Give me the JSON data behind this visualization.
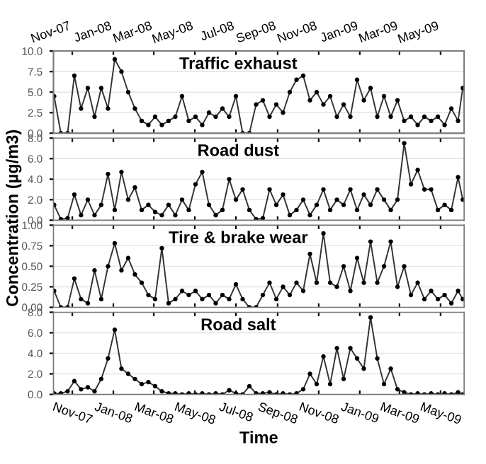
{
  "chart_data": [
    {
      "type": "line",
      "title": "Traffic exhaust",
      "marker": "circle",
      "line_style": "solid",
      "grid": "y",
      "tick_labels": "y",
      "xlim": [
        "2007-10-04",
        "2009-06-05"
      ],
      "xticks": [
        {
          "value": "2007-11-01",
          "label": null
        },
        {
          "value": "2008-01-01",
          "label": null
        },
        {
          "value": "2008-03-01",
          "label": null
        },
        {
          "value": "2008-05-01",
          "label": null
        },
        {
          "value": "2008-07-01",
          "label": null
        },
        {
          "value": "2008-09-01",
          "label": null
        },
        {
          "value": "2008-11-01",
          "label": null
        },
        {
          "value": "2009-01-01",
          "label": null
        },
        {
          "value": "2009-03-01",
          "label": null
        },
        {
          "value": "2009-05-01",
          "label": null
        }
      ],
      "x2lim": [
        "2007-10-04",
        "2009-06-05"
      ],
      "x2ticks": [
        {
          "value": "2007-11-01",
          "label": "Nov-07"
        },
        {
          "value": "2008-01-01",
          "label": "Jan-08"
        },
        {
          "value": "2008-03-01",
          "label": "Mar-08"
        },
        {
          "value": "2008-05-01",
          "label": "May-08"
        },
        {
          "value": "2008-07-01",
          "label": "Jul-08"
        },
        {
          "value": "2008-09-01",
          "label": "Sep-08"
        },
        {
          "value": "2008-11-01",
          "label": "Nov-08"
        },
        {
          "value": "2009-01-01",
          "label": "Jan-09"
        },
        {
          "value": "2009-03-01",
          "label": "Mar-09"
        },
        {
          "value": "2009-05-01",
          "label": "May-09"
        }
      ],
      "ylim": [
        0,
        10
      ],
      "yticks": [
        {
          "value": 0,
          "label": "0.0"
        },
        {
          "value": 2.5,
          "label": "2.5"
        },
        {
          "value": 5,
          "label": "5.0"
        },
        {
          "value": 7.5,
          "label": "7.5"
        },
        {
          "value": 10,
          "label": "10.0"
        }
      ],
      "x": [
        "2007-10-05",
        "2007-10-15",
        "2007-10-25",
        "2007-11-04",
        "2007-11-14",
        "2007-11-24",
        "2007-12-04",
        "2007-12-14",
        "2007-12-24",
        "2008-01-03",
        "2008-01-13",
        "2008-01-23",
        "2008-02-02",
        "2008-02-12",
        "2008-02-22",
        "2008-03-03",
        "2008-03-13",
        "2008-03-23",
        "2008-04-02",
        "2008-04-12",
        "2008-04-22",
        "2008-05-02",
        "2008-05-12",
        "2008-05-22",
        "2008-06-01",
        "2008-06-11",
        "2008-06-21",
        "2008-07-01",
        "2008-07-11",
        "2008-07-21",
        "2008-07-31",
        "2008-08-10",
        "2008-08-20",
        "2008-08-30",
        "2008-09-09",
        "2008-09-19",
        "2008-09-29",
        "2008-10-09",
        "2008-10-19",
        "2008-10-29",
        "2008-11-08",
        "2008-11-18",
        "2008-11-28",
        "2008-12-08",
        "2008-12-18",
        "2008-12-28",
        "2009-01-07",
        "2009-01-17",
        "2009-01-27",
        "2009-02-06",
        "2009-02-16",
        "2009-02-26",
        "2009-03-08",
        "2009-03-18",
        "2009-03-28",
        "2009-04-07",
        "2009-04-17",
        "2009-04-27",
        "2009-05-07",
        "2009-05-17",
        "2009-05-27",
        "2009-06-03"
      ],
      "series": [
        {
          "color": "#333333",
          "values": [
            4.5,
            0,
            0,
            7,
            3,
            5.5,
            2,
            5.5,
            3,
            9,
            7.5,
            5,
            3,
            1.5,
            1,
            2,
            1,
            1.5,
            2,
            4.5,
            1.5,
            2,
            1,
            2.5,
            2,
            3,
            2,
            4.5,
            0,
            0,
            3.5,
            4,
            2,
            3.5,
            2.5,
            5,
            6.5,
            7,
            4,
            5,
            3.5,
            4.5,
            2,
            3.5,
            2,
            6.5,
            4,
            5.5,
            2,
            4.5,
            2,
            4,
            1.5,
            2,
            1,
            2,
            1.5,
            2,
            1,
            3,
            1.5,
            5.5
          ]
        }
      ]
    },
    {
      "type": "line",
      "title": "Road dust",
      "ylabel": "Concentration (µg/m3)",
      "marker": "circle",
      "line_style": "solid",
      "grid": "y",
      "tick_labels": "y",
      "xlim": [
        "2007-10-04",
        "2009-06-05"
      ],
      "xticks": [
        {
          "value": "2007-11-01",
          "label": null
        },
        {
          "value": "2008-01-01",
          "label": null
        },
        {
          "value": "2008-03-01",
          "label": null
        },
        {
          "value": "2008-05-01",
          "label": null
        },
        {
          "value": "2008-07-01",
          "label": null
        },
        {
          "value": "2008-09-01",
          "label": null
        },
        {
          "value": "2008-11-01",
          "label": null
        },
        {
          "value": "2009-01-01",
          "label": null
        },
        {
          "value": "2009-03-01",
          "label": null
        },
        {
          "value": "2009-05-01",
          "label": null
        }
      ],
      "ylim": [
        0,
        8
      ],
      "yticks": [
        {
          "value": 0,
          "label": "0.0"
        },
        {
          "value": 2,
          "label": "2.0"
        },
        {
          "value": 4,
          "label": "4.0"
        },
        {
          "value": 6,
          "label": "6.0"
        },
        {
          "value": 8,
          "label": "8.0"
        }
      ],
      "x": [
        "2007-10-05",
        "2007-10-15",
        "2007-10-25",
        "2007-11-04",
        "2007-11-14",
        "2007-11-24",
        "2007-12-04",
        "2007-12-14",
        "2007-12-24",
        "2008-01-03",
        "2008-01-13",
        "2008-01-23",
        "2008-02-02",
        "2008-02-12",
        "2008-02-22",
        "2008-03-03",
        "2008-03-13",
        "2008-03-23",
        "2008-04-02",
        "2008-04-12",
        "2008-04-22",
        "2008-05-02",
        "2008-05-12",
        "2008-05-22",
        "2008-06-01",
        "2008-06-11",
        "2008-06-21",
        "2008-07-01",
        "2008-07-11",
        "2008-07-21",
        "2008-07-31",
        "2008-08-10",
        "2008-08-20",
        "2008-08-30",
        "2008-09-09",
        "2008-09-19",
        "2008-09-29",
        "2008-10-09",
        "2008-10-19",
        "2008-10-29",
        "2008-11-08",
        "2008-11-18",
        "2008-11-28",
        "2008-12-08",
        "2008-12-18",
        "2008-12-28",
        "2009-01-07",
        "2009-01-17",
        "2009-01-27",
        "2009-02-06",
        "2009-02-16",
        "2009-02-26",
        "2009-03-08",
        "2009-03-18",
        "2009-03-28",
        "2009-04-07",
        "2009-04-17",
        "2009-04-27",
        "2009-05-07",
        "2009-05-17",
        "2009-05-27",
        "2009-06-03"
      ],
      "series": [
        {
          "color": "#333333",
          "values": [
            1.5,
            0.1,
            0.2,
            2.5,
            0.5,
            2,
            0.5,
            1.5,
            4.5,
            1,
            4.7,
            2,
            3.2,
            1,
            1.5,
            0.8,
            0.5,
            1.5,
            0.5,
            2,
            1,
            3.5,
            4.7,
            1.5,
            0.5,
            1,
            4,
            2,
            3,
            1,
            0.1,
            0.2,
            3,
            1.5,
            2.5,
            0.5,
            1,
            2,
            0.5,
            1.5,
            3,
            1,
            2,
            1.5,
            3,
            1,
            2.5,
            1.5,
            3,
            2,
            1,
            2,
            7.5,
            3.5,
            4.9,
            3,
            3,
            1,
            1.5,
            1,
            4.2,
            2
          ]
        }
      ]
    },
    {
      "type": "line",
      "title": "Tire & brake wear",
      "marker": "circle",
      "line_style": "solid",
      "grid": "y",
      "tick_labels": "y",
      "xlim": [
        "2007-10-04",
        "2009-06-05"
      ],
      "xticks": [
        {
          "value": "2007-11-01",
          "label": null
        },
        {
          "value": "2008-01-01",
          "label": null
        },
        {
          "value": "2008-03-01",
          "label": null
        },
        {
          "value": "2008-05-01",
          "label": null
        },
        {
          "value": "2008-07-01",
          "label": null
        },
        {
          "value": "2008-09-01",
          "label": null
        },
        {
          "value": "2008-11-01",
          "label": null
        },
        {
          "value": "2009-01-01",
          "label": null
        },
        {
          "value": "2009-03-01",
          "label": null
        },
        {
          "value": "2009-05-01",
          "label": null
        }
      ],
      "ylim": [
        0,
        1
      ],
      "yticks": [
        {
          "value": 0,
          "label": "0.00"
        },
        {
          "value": 0.25,
          "label": "0.25"
        },
        {
          "value": 0.5,
          "label": "0.50"
        },
        {
          "value": 0.75,
          "label": "0.75"
        },
        {
          "value": 1,
          "label": "1.00"
        }
      ],
      "x": [
        "2007-10-05",
        "2007-10-15",
        "2007-10-25",
        "2007-11-04",
        "2007-11-14",
        "2007-11-24",
        "2007-12-04",
        "2007-12-14",
        "2007-12-24",
        "2008-01-03",
        "2008-01-13",
        "2008-01-23",
        "2008-02-02",
        "2008-02-12",
        "2008-02-22",
        "2008-03-03",
        "2008-03-13",
        "2008-03-23",
        "2008-04-02",
        "2008-04-12",
        "2008-04-22",
        "2008-05-02",
        "2008-05-12",
        "2008-05-22",
        "2008-06-01",
        "2008-06-11",
        "2008-06-21",
        "2008-07-01",
        "2008-07-11",
        "2008-07-21",
        "2008-07-31",
        "2008-08-10",
        "2008-08-20",
        "2008-08-30",
        "2008-09-09",
        "2008-09-19",
        "2008-09-29",
        "2008-10-09",
        "2008-10-19",
        "2008-10-29",
        "2008-11-08",
        "2008-11-18",
        "2008-11-28",
        "2008-12-08",
        "2008-12-18",
        "2008-12-28",
        "2009-01-07",
        "2009-01-17",
        "2009-01-27",
        "2009-02-06",
        "2009-02-16",
        "2009-02-26",
        "2009-03-08",
        "2009-03-18",
        "2009-03-28",
        "2009-04-07",
        "2009-04-17",
        "2009-04-27",
        "2009-05-07",
        "2009-05-17",
        "2009-05-27",
        "2009-06-03"
      ],
      "series": [
        {
          "color": "#333333",
          "values": [
            0.2,
            0,
            0,
            0.35,
            0.1,
            0.05,
            0.45,
            0.1,
            0.5,
            0.78,
            0.45,
            0.6,
            0.4,
            0.3,
            0.15,
            0.1,
            0.72,
            0.05,
            0.1,
            0.2,
            0.15,
            0.2,
            0.1,
            0.15,
            0.05,
            0.15,
            0.1,
            0.28,
            0.1,
            0,
            0,
            0.15,
            0.3,
            0.1,
            0.25,
            0.15,
            0.3,
            0.2,
            0.65,
            0.3,
            0.9,
            0.3,
            0.25,
            0.5,
            0.2,
            0.6,
            0.3,
            0.8,
            0.3,
            0.5,
            0.8,
            0.25,
            0.5,
            0.15,
            0.3,
            0.1,
            0.2,
            0.1,
            0.15,
            0.05,
            0.2,
            0.1
          ]
        }
      ]
    },
    {
      "type": "line",
      "title": "Road salt",
      "xlabel": "Time",
      "marker": "circle",
      "line_style": "solid",
      "grid": "y",
      "xlim": [
        "2007-10-04",
        "2009-06-05"
      ],
      "xticks": [
        {
          "value": "2007-11-01",
          "label": "Nov-07"
        },
        {
          "value": "2008-01-01",
          "label": "Jan-08"
        },
        {
          "value": "2008-03-01",
          "label": "Mar-08"
        },
        {
          "value": "2008-05-01",
          "label": "May-08"
        },
        {
          "value": "2008-07-01",
          "label": "Jul-08"
        },
        {
          "value": "2008-09-01",
          "label": "Sep-08"
        },
        {
          "value": "2008-11-01",
          "label": "Nov-08"
        },
        {
          "value": "2009-01-01",
          "label": "Jan-09"
        },
        {
          "value": "2009-03-01",
          "label": "Mar-09"
        },
        {
          "value": "2009-05-01",
          "label": "May-09"
        }
      ],
      "ylim": [
        0,
        8
      ],
      "yticks": [
        {
          "value": 0,
          "label": "0.0"
        },
        {
          "value": 2,
          "label": "2.0"
        },
        {
          "value": 4,
          "label": "4.0"
        },
        {
          "value": 6,
          "label": "6.0"
        },
        {
          "value": 8,
          "label": "8.0"
        }
      ],
      "x": [
        "2007-10-05",
        "2007-10-15",
        "2007-10-25",
        "2007-11-04",
        "2007-11-14",
        "2007-11-24",
        "2007-12-04",
        "2007-12-14",
        "2007-12-24",
        "2008-01-03",
        "2008-01-13",
        "2008-01-23",
        "2008-02-02",
        "2008-02-12",
        "2008-02-22",
        "2008-03-03",
        "2008-03-13",
        "2008-03-23",
        "2008-04-02",
        "2008-04-12",
        "2008-04-22",
        "2008-05-02",
        "2008-05-12",
        "2008-05-22",
        "2008-06-01",
        "2008-06-11",
        "2008-06-21",
        "2008-07-01",
        "2008-07-11",
        "2008-07-21",
        "2008-07-31",
        "2008-08-10",
        "2008-08-20",
        "2008-08-30",
        "2008-09-09",
        "2008-09-19",
        "2008-09-29",
        "2008-10-09",
        "2008-10-19",
        "2008-10-29",
        "2008-11-08",
        "2008-11-18",
        "2008-11-28",
        "2008-12-08",
        "2008-12-18",
        "2008-12-28",
        "2009-01-07",
        "2009-01-17",
        "2009-01-27",
        "2009-02-06",
        "2009-02-16",
        "2009-02-26",
        "2009-03-08",
        "2009-03-18",
        "2009-03-28",
        "2009-04-07",
        "2009-04-17",
        "2009-04-27",
        "2009-05-07",
        "2009-05-17",
        "2009-05-27",
        "2009-06-03"
      ],
      "series": [
        {
          "color": "#333333",
          "values": [
            0.1,
            0.1,
            0.3,
            1.3,
            0.5,
            0.7,
            0.3,
            1.5,
            3.5,
            6.3,
            2.5,
            2,
            1.5,
            1,
            1.2,
            0.8,
            0.3,
            0.1,
            0.1,
            0,
            0.1,
            0,
            0.1,
            0,
            0.1,
            0,
            0.4,
            0.1,
            0,
            0.8,
            0.1,
            0.1,
            0.2,
            0,
            0.1,
            0,
            0.1,
            0.5,
            2,
            1,
            3.7,
            1,
            4.5,
            1.5,
            4.5,
            3.5,
            2.5,
            7.5,
            3.5,
            1,
            2.5,
            0.5,
            0.2,
            0,
            0.1,
            0,
            0.1,
            0,
            0.1,
            0,
            0.2,
            0
          ]
        }
      ]
    }
  ]
}
